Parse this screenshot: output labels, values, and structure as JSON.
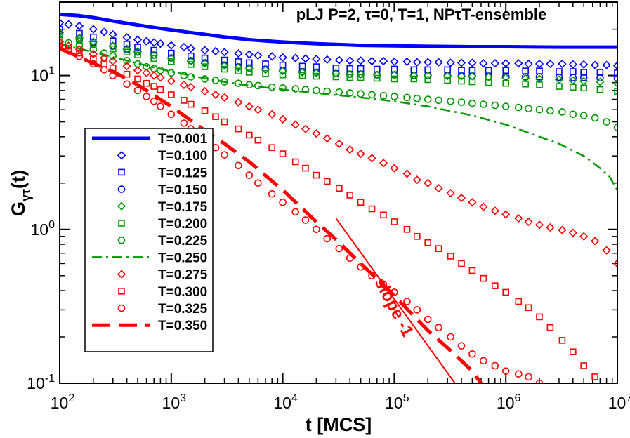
{
  "chart_data": {
    "type": "scatter",
    "title": "pLJ P=2, τ=0, T=1, NPτT-ensemble",
    "xlabel": "t [MCS]",
    "ylabel_main": "G",
    "ylabel_sub": "γτ",
    "ylabel_tail": "(t)",
    "xscale": "log",
    "yscale": "log",
    "xlim": [
      100,
      10000000
    ],
    "ylim": [
      0.1,
      30
    ],
    "xticks": [
      {
        "value": 100,
        "base": "10",
        "exp": "2"
      },
      {
        "value": 1000,
        "base": "10",
        "exp": "3"
      },
      {
        "value": 10000,
        "base": "10",
        "exp": "4"
      },
      {
        "value": 100000,
        "base": "10",
        "exp": "5"
      },
      {
        "value": 1000000,
        "base": "10",
        "exp": "6"
      },
      {
        "value": 10000000,
        "base": "10",
        "exp": "7"
      }
    ],
    "yticks": [
      {
        "value": 0.1,
        "base": "10",
        "exp": "-1"
      },
      {
        "value": 1,
        "base": "10",
        "exp": "0"
      },
      {
        "value": 10,
        "base": "10",
        "exp": "1"
      }
    ],
    "legend_position": "left-middle",
    "series": [
      {
        "name": "T=0.001",
        "color": "#0000ff",
        "marker": "line",
        "dash": "solid",
        "width": 5,
        "x": [
          100,
          150,
          200,
          300,
          500,
          700,
          1000,
          1500,
          2000,
          3000,
          5000,
          7000,
          10000,
          20000,
          50000,
          100000,
          200000,
          500000,
          1000000,
          3000000,
          10000000
        ],
        "y": [
          25,
          24.5,
          23.8,
          22.6,
          21.3,
          20.5,
          19.8,
          19.0,
          18.5,
          17.8,
          17.1,
          16.8,
          16.5,
          16.1,
          15.7,
          15.6,
          15.5,
          15.4,
          15.4,
          15.3,
          15.3
        ]
      },
      {
        "name": "T=0.100",
        "color": "#0000ff",
        "marker": "diamond",
        "x": [
          100,
          120,
          150,
          200,
          250,
          300,
          400,
          500,
          600,
          700,
          800,
          1000,
          1300,
          1500,
          2000,
          2500,
          3000,
          4000,
          5000,
          6000,
          8000,
          10000,
          13000,
          16000,
          20000,
          25000,
          32000,
          40000,
          50000,
          63000,
          80000,
          100000,
          130000,
          160000,
          200000,
          250000,
          320000,
          400000,
          500000,
          630000,
          800000,
          1000000,
          1300000,
          1600000,
          2000000,
          2500000,
          3200000,
          4000000,
          5000000,
          6300000,
          8000000,
          10000000
        ],
        "y": [
          22,
          21.5,
          21,
          20,
          19.2,
          18.5,
          17.7,
          17.1,
          16.7,
          16.4,
          16.1,
          15.7,
          15.3,
          15,
          14.6,
          14.4,
          14.2,
          13.9,
          13.7,
          13.5,
          13.3,
          13.1,
          13,
          12.9,
          12.8,
          12.7,
          12.6,
          12.5,
          12.5,
          12.4,
          12.4,
          12.3,
          12.3,
          12.2,
          12.2,
          12.2,
          12.1,
          12.1,
          12.1,
          12.0,
          12.0,
          12.0,
          12.0,
          11.9,
          11.9,
          11.9,
          11.9,
          11.8,
          11.8,
          11.7,
          11.7,
          11.6
        ]
      },
      {
        "name": "T=0.125",
        "color": "#0000ff",
        "marker": "square",
        "x": [
          100,
          150,
          200,
          300,
          400,
          500,
          700,
          1000,
          1500,
          2000,
          3000,
          4000,
          5000,
          7000,
          10000,
          15000,
          20000,
          30000,
          40000,
          50000,
          70000,
          100000,
          150000,
          200000,
          300000,
          400000,
          500000,
          700000,
          1000000,
          1500000,
          2000000,
          3000000,
          4000000,
          5000000,
          7000000,
          10000000
        ],
        "y": [
          20,
          18.8,
          17.8,
          16.8,
          16,
          15.3,
          14.6,
          14,
          13.4,
          13,
          12.6,
          12.3,
          12.1,
          11.9,
          11.7,
          11.5,
          11.4,
          11.2,
          11.1,
          11.1,
          11,
          11,
          10.9,
          10.9,
          10.9,
          10.8,
          10.8,
          10.8,
          10.8,
          10.7,
          10.7,
          10.6,
          10.6,
          10.5,
          10.5,
          10.4
        ]
      },
      {
        "name": "T=0.150",
        "color": "#0000ff",
        "marker": "circle",
        "x": [
          100,
          150,
          200,
          300,
          400,
          500,
          700,
          1000,
          1500,
          2000,
          3000,
          4000,
          5000,
          7000,
          10000,
          15000,
          20000,
          30000,
          40000,
          50000,
          70000,
          100000,
          150000,
          200000,
          300000,
          400000,
          500000,
          700000,
          1000000,
          1500000,
          2000000,
          3000000,
          4000000,
          5000000,
          7000000,
          10000000
        ],
        "y": [
          18.5,
          17.2,
          16.4,
          15.5,
          14.8,
          14.2,
          13.6,
          13,
          12.5,
          12.1,
          11.7,
          11.4,
          11.2,
          11,
          10.8,
          10.6,
          10.5,
          10.3,
          10.2,
          10.2,
          10.1,
          10.1,
          10,
          10,
          10,
          9.95,
          9.9,
          9.9,
          9.85,
          9.8,
          9.8,
          9.75,
          9.7,
          9.7,
          9.65,
          9.6
        ]
      },
      {
        "name": "T=0.175",
        "color": "#009900",
        "marker": "diamond",
        "x": [
          100,
          150,
          200,
          300,
          400,
          500,
          700,
          1000,
          1500,
          2000,
          3000,
          4000,
          5000,
          7000,
          10000,
          15000,
          20000,
          30000,
          40000,
          50000,
          70000,
          100000,
          150000,
          200000,
          300000,
          400000,
          500000,
          700000,
          1000000,
          1500000,
          2000000,
          3000000,
          4000000,
          5000000,
          7000000,
          10000000
        ],
        "y": [
          19,
          17.6,
          16.6,
          15.6,
          14.9,
          14.3,
          13.6,
          13,
          12.4,
          12,
          11.6,
          11.3,
          11.1,
          10.9,
          10.7,
          10.5,
          10.4,
          10.3,
          10.2,
          10.2,
          10.1,
          10.1,
          10,
          10,
          9.95,
          9.9,
          9.9,
          9.8,
          9.7,
          9.6,
          9.5,
          9.4,
          9.3,
          9.2,
          9.1,
          8.9
        ]
      },
      {
        "name": "T=0.200",
        "color": "#009900",
        "marker": "square",
        "x": [
          100,
          150,
          200,
          300,
          400,
          500,
          700,
          1000,
          1500,
          2000,
          3000,
          4000,
          5000,
          7000,
          10000,
          15000,
          20000,
          30000,
          40000,
          50000,
          70000,
          100000,
          150000,
          200000,
          300000,
          400000,
          500000,
          700000,
          1000000,
          1500000,
          2000000,
          3000000,
          4000000,
          5000000,
          7000000,
          10000000
        ],
        "y": [
          18,
          16.8,
          15.9,
          14.9,
          14.2,
          13.6,
          12.9,
          12.3,
          11.8,
          11.4,
          11,
          10.7,
          10.5,
          10.3,
          10.1,
          10,
          9.9,
          9.8,
          9.7,
          9.7,
          9.6,
          9.5,
          9.5,
          9.4,
          9.3,
          9.2,
          9.1,
          9,
          8.9,
          8.8,
          8.7,
          8.5,
          8.4,
          8.3,
          8.1,
          7.9
        ]
      },
      {
        "name": "T=0.225",
        "color": "#009900",
        "marker": "circle",
        "x": [
          100,
          120,
          150,
          200,
          250,
          300,
          400,
          500,
          600,
          700,
          800,
          1000,
          1300,
          1500,
          2000,
          2500,
          3000,
          4000,
          5000,
          6000,
          8000,
          10000,
          13000,
          16000,
          20000,
          25000,
          32000,
          40000,
          50000,
          63000,
          80000,
          100000,
          130000,
          160000,
          200000,
          250000,
          320000,
          400000,
          500000,
          630000,
          800000,
          1000000,
          1300000,
          1600000,
          2000000,
          2500000,
          3200000,
          4000000,
          5000000,
          6300000,
          8000000,
          10000000
        ],
        "y": [
          17,
          16.3,
          15.6,
          14.7,
          14,
          13.4,
          12.5,
          11.9,
          11.4,
          11.1,
          10.8,
          10.4,
          10,
          9.8,
          9.5,
          9.3,
          9.1,
          8.9,
          8.7,
          8.6,
          8.4,
          8.3,
          8.2,
          8.1,
          8,
          7.9,
          7.8,
          7.7,
          7.6,
          7.5,
          7.4,
          7.3,
          7.2,
          7.1,
          7,
          6.9,
          6.8,
          6.7,
          6.6,
          6.5,
          6.4,
          6.3,
          6.2,
          6.1,
          6,
          5.9,
          5.8,
          5.6,
          5.5,
          5.3,
          5,
          4.6
        ]
      },
      {
        "name": "T=0.250",
        "color": "#009900",
        "marker": "line",
        "dash": "dashdot",
        "width": 2.5,
        "x": [
          100,
          200,
          300,
          500,
          1000,
          2000,
          3000,
          5000,
          10000,
          20000,
          50000,
          100000,
          200000,
          500000,
          1000000,
          2000000,
          3000000,
          5000000,
          7000000,
          8500000,
          10000000
        ],
        "y": [
          16,
          14.2,
          13.2,
          12,
          10.6,
          9.6,
          9.1,
          8.6,
          8.1,
          7.7,
          7.2,
          6.8,
          6.3,
          5.5,
          4.8,
          4,
          3.6,
          3,
          2.5,
          2.2,
          1.8
        ]
      },
      {
        "name": "T=0.275",
        "color": "#ff0000",
        "marker": "diamond",
        "x": [
          100,
          120,
          150,
          200,
          250,
          300,
          400,
          500,
          600,
          700,
          800,
          1000,
          1300,
          1500,
          2000,
          2500,
          3000,
          4000,
          5000,
          6000,
          8000,
          10000,
          13000,
          16000,
          20000,
          25000,
          32000,
          40000,
          50000,
          63000,
          80000,
          100000,
          130000,
          160000,
          200000,
          250000,
          320000,
          400000,
          500000,
          630000,
          800000,
          1000000,
          1300000,
          1600000,
          2000000,
          2500000,
          3200000,
          4000000,
          5000000,
          6300000,
          8000000,
          10000000
        ],
        "y": [
          16.5,
          15.6,
          14.8,
          13.8,
          13,
          12.4,
          11.5,
          10.8,
          10.4,
          10,
          9.7,
          9.2,
          8.7,
          8.4,
          7.9,
          7.5,
          7.2,
          6.7,
          6.3,
          6,
          5.6,
          5.2,
          4.8,
          4.5,
          4.2,
          3.9,
          3.6,
          3.3,
          3.1,
          2.9,
          2.7,
          2.5,
          2.3,
          2.1,
          2,
          1.85,
          1.72,
          1.6,
          1.5,
          1.4,
          1.32,
          1.25,
          1.18,
          1.12,
          1.07,
          1.03,
          0.99,
          0.95,
          0.9,
          0.84,
          0.73,
          0.6
        ]
      },
      {
        "name": "T=0.300",
        "color": "#ff0000",
        "marker": "square",
        "x": [
          100,
          120,
          150,
          200,
          250,
          300,
          400,
          500,
          600,
          700,
          800,
          1000,
          1300,
          1500,
          2000,
          2500,
          3000,
          4000,
          5000,
          6000,
          8000,
          10000,
          13000,
          16000,
          20000,
          25000,
          32000,
          40000,
          50000,
          63000,
          80000,
          100000,
          130000,
          160000,
          200000,
          250000,
          320000,
          400000,
          500000,
          630000,
          800000,
          1000000,
          1300000,
          1600000,
          2000000,
          2500000,
          3200000,
          4000000,
          5000000,
          6300000
        ],
        "y": [
          16,
          15,
          14,
          12.8,
          11.9,
          11.2,
          10.2,
          9.5,
          8.9,
          8.5,
          8.1,
          7.5,
          6.9,
          6.5,
          5.9,
          5.4,
          5,
          4.5,
          4.1,
          3.8,
          3.4,
          3.1,
          2.75,
          2.5,
          2.25,
          2.05,
          1.85,
          1.67,
          1.5,
          1.36,
          1.24,
          1.12,
          1,
          0.9,
          0.82,
          0.75,
          0.67,
          0.6,
          0.54,
          0.48,
          0.43,
          0.39,
          0.34,
          0.31,
          0.27,
          0.23,
          0.19,
          0.16,
          0.13,
          0.11
        ]
      },
      {
        "name": "T=0.325",
        "color": "#ff0000",
        "marker": "circle",
        "x": [
          100,
          120,
          150,
          200,
          250,
          300,
          400,
          500,
          600,
          700,
          800,
          1000,
          1300,
          1500,
          2000,
          2500,
          3000,
          4000,
          5000,
          6000,
          8000,
          10000,
          13000,
          16000,
          20000,
          25000,
          32000,
          40000,
          50000,
          63000,
          80000,
          100000,
          130000,
          160000,
          200000,
          250000,
          320000,
          400000,
          500000,
          630000,
          800000,
          1000000,
          1300000,
          1600000,
          2000000
        ],
        "y": [
          15.5,
          14.5,
          13.3,
          11.9,
          10.9,
          10,
          8.8,
          8,
          7.3,
          6.8,
          6.3,
          5.6,
          4.9,
          4.5,
          3.85,
          3.4,
          3.05,
          2.6,
          2.25,
          2,
          1.7,
          1.5,
          1.3,
          1.15,
          1,
          0.87,
          0.75,
          0.65,
          0.57,
          0.5,
          0.44,
          0.39,
          0.34,
          0.3,
          0.26,
          0.23,
          0.2,
          0.175,
          0.155,
          0.14,
          0.13,
          0.12,
          0.115,
          0.11,
          0.1
        ]
      },
      {
        "name": "T=0.350",
        "color": "#ff0000",
        "marker": "line",
        "dash": "dashed",
        "width": 5,
        "x": [
          100,
          200,
          300,
          500,
          1000,
          2000,
          3000,
          5000,
          10000,
          20000,
          30000,
          50000,
          100000,
          200000,
          300000,
          500000,
          600000
        ],
        "y": [
          15,
          12,
          10.6,
          8.7,
          6.3,
          4.4,
          3.6,
          2.75,
          1.8,
          1.12,
          0.86,
          0.6,
          0.37,
          0.22,
          0.17,
          0.12,
          0.1
        ]
      }
    ],
    "annotations": [
      {
        "name": "slope-line",
        "kind": "line",
        "color": "#ff0000",
        "x": [
          30000,
          350000
        ],
        "y": [
          1.18,
          0.1
        ]
      },
      {
        "name": "slope-label",
        "kind": "text",
        "text": "slope -1",
        "color": "#ff0000",
        "x": 90000,
        "y": 0.3,
        "rotate": 62
      }
    ]
  }
}
